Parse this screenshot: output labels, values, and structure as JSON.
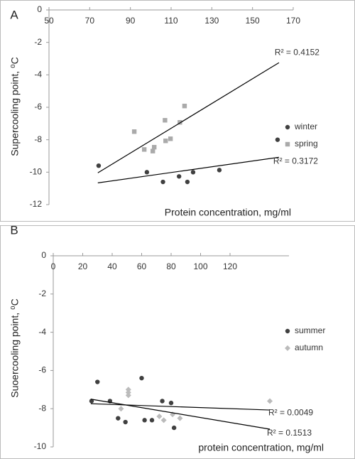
{
  "chart_data": [
    {
      "type": "scatter",
      "panel_label": "A",
      "xlabel": "Protein concentration, mg/ml",
      "ylabel": "Supercooling point, ⁰C",
      "xlim": [
        50,
        170
      ],
      "ylim": [
        -12,
        0
      ],
      "xticks": [
        50,
        70,
        90,
        110,
        130,
        150,
        170
      ],
      "yticks": [
        0,
        -2,
        -4,
        -6,
        -8,
        -10,
        -12
      ],
      "legend": "right",
      "series": [
        {
          "name": "winter",
          "color": "#404040",
          "marker": "circle",
          "x": [
            74.4,
            98.1,
            106,
            113.9,
            118,
            120.8,
            133.7,
            162.3
          ],
          "values": [
            -9.6,
            -10.0,
            -10.6,
            -10.26,
            -10.6,
            -10.0,
            -9.87,
            -8.0
          ],
          "trendline": {
            "x": [
              74,
              163
            ],
            "y": [
              -10.66,
              -9.08
            ]
          },
          "trend_label": "R² = 0.3172"
        },
        {
          "name": "spring",
          "color": "#aaaaaa",
          "marker": "square",
          "x": [
            91.9,
            96.8,
            101.7,
            101,
            107,
            107.3,
            109.7,
            114.3,
            116.6
          ],
          "values": [
            -7.5,
            -8.6,
            -8.46,
            -8.7,
            -6.8,
            -8.07,
            -7.94,
            -6.93,
            -5.92
          ],
          "trendline": {
            "x": [
              74,
              163
            ],
            "y": [
              -10.04,
              -3.25
            ]
          },
          "trend_label": "R² = 0.4152"
        }
      ]
    },
    {
      "type": "scatter",
      "panel_label": "B",
      "xlabel": "protein concentration, mg/ml",
      "ylabel": "Suoercooling point, ⁰C",
      "xlim": [
        0,
        160
      ],
      "ylim": [
        -10,
        0
      ],
      "xticks": [
        0,
        20,
        40,
        60,
        80,
        100,
        120
      ],
      "yticks": [
        0,
        -2,
        -4,
        -6,
        -8,
        -10
      ],
      "legend": "right",
      "series": [
        {
          "name": "summer",
          "color": "#404040",
          "marker": "circle",
          "x": [
            26,
            30,
            38.5,
            44,
            49,
            60,
            62,
            67,
            74,
            80,
            82
          ],
          "values": [
            -7.6,
            -6.6,
            -7.6,
            -8.5,
            -8.7,
            -6.4,
            -8.6,
            -8.6,
            -7.6,
            -7.7,
            -9.0
          ],
          "trendline": {
            "x": [
              25.5,
              147
            ],
            "y": [
              -7.74,
              -8.07
            ]
          },
          "trend_label": "R² = 0.0049"
        },
        {
          "name": "autumn",
          "color": "#bbbbbb",
          "marker": "diamond",
          "x": [
            46,
            51,
            51,
            51,
            72,
            75,
            81,
            86,
            147
          ],
          "values": [
            -8.0,
            -7.0,
            -7.15,
            -7.3,
            -8.4,
            -8.6,
            -8.3,
            -8.5,
            -7.6
          ],
          "trendline": {
            "x": [
              25.5,
              147
            ],
            "y": [
              -7.5,
              -9.07
            ]
          },
          "trend_label": "R² = 0.1513"
        }
      ]
    }
  ]
}
